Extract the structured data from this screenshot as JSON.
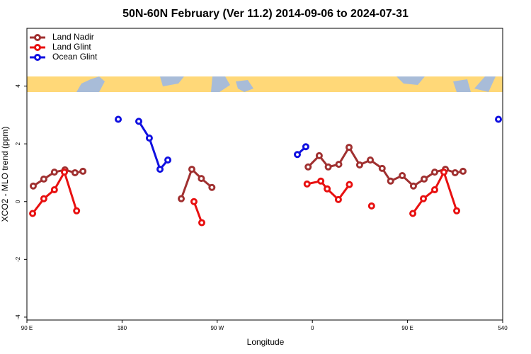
{
  "chart_data": {
    "type": "line",
    "title": "50N-60N February (Ver 11.2)   2014-09-06 to 2024-07-31",
    "x_label": "Longitude",
    "y_label": "XCO2 - MLO trend (ppm)",
    "xlim": [
      90,
      540
    ],
    "ylim": [
      -4.1,
      6
    ],
    "xticks": [
      {
        "value": 90,
        "label": "90 E"
      },
      180,
      {
        "value": 270,
        "label": "90 W"
      },
      {
        "value": 360,
        "label": "0"
      },
      {
        "value": 450,
        "label": "90 E"
      },
      540
    ],
    "yticks": [
      -4,
      -2,
      0,
      2,
      4
    ],
    "legend": "top-left",
    "series": [
      {
        "name": "Land Nadir",
        "color": "#a03030",
        "x": [
          96,
          106,
          116,
          126,
          135.5,
          143,
          null,
          236,
          246,
          255,
          265,
          null,
          356,
          366.5,
          375,
          385,
          394.7,
          404.7,
          414.8,
          426,
          434,
          445,
          455.6,
          465.7,
          475.7,
          485.8,
          495,
          502.5
        ],
        "values": [
          0.54,
          0.78,
          1.02,
          1.1,
          1.0,
          1.05,
          null,
          0.1,
          1.12,
          0.8,
          0.49,
          null,
          1.2,
          1.59,
          1.2,
          1.29,
          1.88,
          1.27,
          1.44,
          1.15,
          0.71,
          0.9,
          0.54,
          0.78,
          1.02,
          1.12,
          1.0,
          1.05
        ]
      },
      {
        "name": "Land Glint",
        "color": "#e81010",
        "x": [
          95.4,
          106,
          116,
          125.5,
          137,
          null,
          248,
          255.4,
          null,
          355,
          368,
          374,
          384.6,
          395,
          null,
          416,
          null,
          455,
          465,
          475.7,
          484.4,
          496.5
        ],
        "values": [
          -0.41,
          0.1,
          0.41,
          1.02,
          -0.32,
          null,
          0,
          -0.73,
          null,
          0.61,
          0.71,
          0.44,
          0.07,
          0.59,
          null,
          -0.15,
          null,
          -0.41,
          0.1,
          0.41,
          1.02,
          -0.32
        ]
      },
      {
        "name": "Ocean Glint",
        "color": "#1010e0",
        "x": [
          176.4,
          null,
          195.8,
          205.8,
          215.9,
          223.3,
          null,
          345.8,
          353.8,
          null,
          536
        ],
        "values": [
          2.85,
          null,
          2.78,
          2.2,
          1.12,
          1.44,
          null,
          1.63,
          1.9,
          null,
          2.85
        ]
      }
    ]
  }
}
